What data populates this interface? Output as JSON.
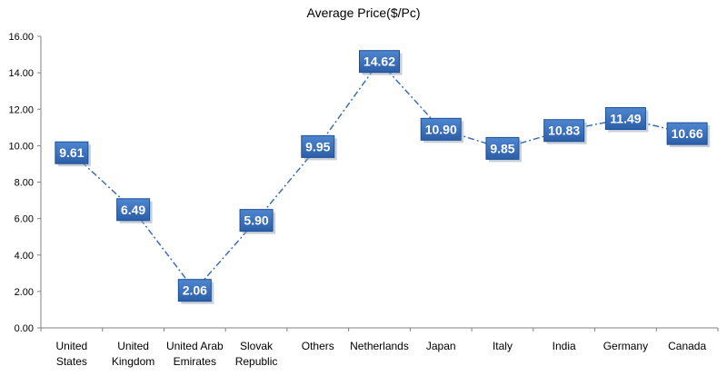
{
  "chart_data": {
    "type": "line",
    "title": "Average Price($/Pc)",
    "xlabel": "",
    "ylabel": "",
    "categories": [
      [
        "United",
        "States"
      ],
      [
        "United",
        "Kingdom"
      ],
      [
        "United Arab",
        "Emirates"
      ],
      [
        "Slovak",
        "Republic"
      ],
      [
        "Others"
      ],
      [
        "Netherlands"
      ],
      [
        "Japan"
      ],
      [
        "Italy"
      ],
      [
        "India"
      ],
      [
        "Germany"
      ],
      [
        "Canada"
      ]
    ],
    "values": [
      9.61,
      6.49,
      2.06,
      5.9,
      9.95,
      14.62,
      10.9,
      9.85,
      10.83,
      11.49,
      10.66
    ],
    "data_labels": [
      "9.61",
      "6.49",
      "2.06",
      "5.90",
      "9.95",
      "14.62",
      "10.90",
      "9.85",
      "10.83",
      "11.49",
      "10.66"
    ],
    "ylim": [
      0,
      16
    ],
    "yticks": [
      "0.00",
      "2.00",
      "4.00",
      "6.00",
      "8.00",
      "10.00",
      "12.00",
      "14.00",
      "16.00"
    ],
    "grid": false,
    "legend": "none",
    "line_style": "dash-dot",
    "colors": {
      "line": "#3E6FB5",
      "label_box_top": "#4F86D0",
      "label_box_bottom": "#2B5FA8",
      "label_text": "#ffffff",
      "axis": "#808080"
    }
  }
}
